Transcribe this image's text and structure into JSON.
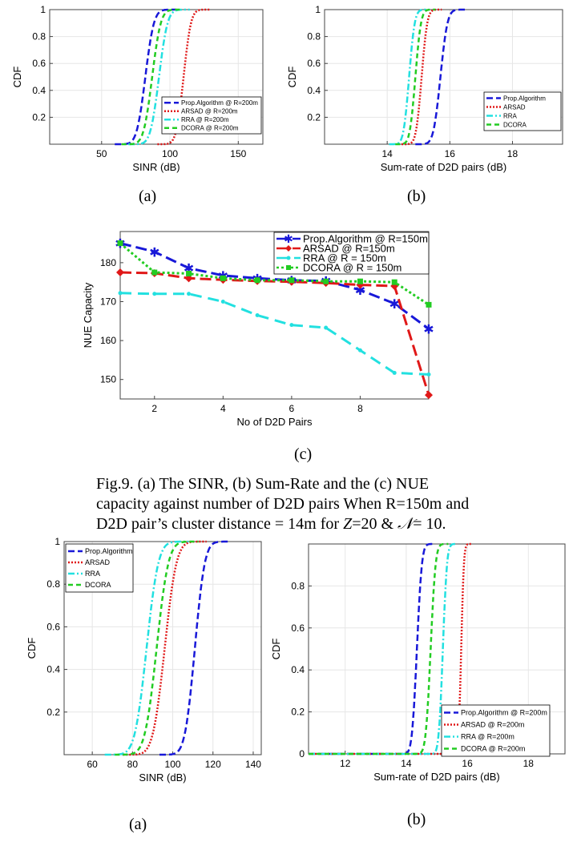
{
  "colors": {
    "blue": "#1818d8",
    "red": "#e01818",
    "cyan": "#22e0e0",
    "green": "#22cc22",
    "grid": "#e6e6e6",
    "axis": "#444444"
  },
  "captions": {
    "a1": "(a)",
    "b1": "(b)",
    "c": "(c)",
    "a2": "(a)",
    "b2": "(b)"
  },
  "figure_caption": {
    "line1": "Fig.9. (a) The SINR, (b) Sum-Rate and the (c) NUE",
    "line2": "capacity against number of D2D pairs  When R=150m and",
    "line3_prefix": "D2D pair’s cluster distance = 14m for ",
    "z_symbol": "Z",
    "line3_mid": "=20 & ",
    "n_symbol": "𝒩",
    "line3_suffix": "= 10."
  },
  "chart_data": [
    {
      "id": "a1",
      "type": "line",
      "xlabel": "SINR (dB)",
      "ylabel": "CDF",
      "title": "",
      "xlim": [
        12,
        168
      ],
      "ylim": [
        0,
        1
      ],
      "xticks": [
        50,
        100,
        150
      ],
      "yticks": [
        0.2,
        0.4,
        0.6,
        0.8,
        1
      ],
      "ytick_labels": [
        "0.2",
        "0.4",
        "0.6",
        "0.8",
        "1"
      ],
      "grid": true,
      "legend_position": "bottom-right",
      "series": [
        {
          "name": "Prop.Algorithm @ R=200m",
          "color": "blue",
          "dash": "8,4",
          "mu": 82,
          "sigma": 7
        },
        {
          "name": "ARSAD @ R=200m",
          "color": "red",
          "dash": "2,2",
          "mu": 110,
          "sigma": 6
        },
        {
          "name": "RRA @ R=200m",
          "color": "cyan",
          "dash": "8,3,2,3",
          "mu": 92,
          "sigma": 7
        },
        {
          "name": "DCORA @ R=200m",
          "color": "green",
          "dash": "6,4",
          "mu": 87,
          "sigma": 7
        }
      ]
    },
    {
      "id": "b1",
      "type": "line",
      "xlabel": "Sum-rate of D2D pairs (dB)",
      "ylabel": "CDF",
      "title": "",
      "xlim": [
        12,
        19.6
      ],
      "ylim": [
        0,
        1
      ],
      "xticks": [
        14,
        16,
        18
      ],
      "yticks": [
        0.2,
        0.4,
        0.6,
        0.8,
        1
      ],
      "ytick_labels": [
        "0.2",
        "0.4",
        "0.6",
        "0.8",
        "1"
      ],
      "grid": true,
      "legend_position": "right",
      "series": [
        {
          "name": "Prop.Algorithm",
          "color": "blue",
          "dash": "8,4",
          "mu": 15.7,
          "sigma": 0.25
        },
        {
          "name": "ARSAD",
          "color": "red",
          "dash": "2,2",
          "mu": 15.1,
          "sigma": 0.2
        },
        {
          "name": "RRA",
          "color": "cyan",
          "dash": "8,3,2,3",
          "mu": 14.7,
          "sigma": 0.2
        },
        {
          "name": "DCORA",
          "color": "green",
          "dash": "6,4",
          "mu": 14.9,
          "sigma": 0.2
        }
      ]
    },
    {
      "id": "c",
      "type": "line",
      "xlabel": "No of D2D Pairs",
      "ylabel": "NUE Capacity",
      "title": "",
      "xlim": [
        1,
        10
      ],
      "ylim": [
        145,
        188
      ],
      "xticks": [
        2,
        4,
        6,
        8
      ],
      "yticks": [
        150,
        160,
        170,
        180
      ],
      "ytick_labels": [
        "150",
        "160",
        "170",
        "180"
      ],
      "grid": false,
      "legend_position": "top-right",
      "series": [
        {
          "name": "Prop.Algorithm  @ R=150m",
          "color": "blue",
          "dash": "14,6",
          "marker": "star",
          "x": [
            1,
            2,
            3,
            4,
            5,
            6,
            7,
            8,
            9,
            10
          ],
          "y": [
            185,
            182.8,
            178.6,
            176.7,
            176,
            175.5,
            175.3,
            173,
            169.5,
            163
          ]
        },
        {
          "name": "ARSAD @ R=150m",
          "color": "red",
          "dash": "14,6",
          "marker": "diamond",
          "x": [
            1,
            2,
            3,
            4,
            5,
            6,
            7,
            8,
            9,
            10
          ],
          "y": [
            177.5,
            177.3,
            176,
            175.6,
            175.3,
            175.1,
            174.8,
            174.3,
            174,
            146
          ]
        },
        {
          "name": "RRA @ R = 150m",
          "color": "cyan",
          "dash": "14,8",
          "marker": "dot",
          "x": [
            1,
            2,
            3,
            4,
            5,
            6,
            7,
            8,
            9,
            10
          ],
          "y": [
            172.2,
            172,
            172,
            170,
            166.5,
            164,
            163.3,
            157.5,
            151.7,
            151.3
          ]
        },
        {
          "name": "DCORA @ R = 150m",
          "color": "green",
          "dash": "3,3",
          "marker": "square",
          "x": [
            1,
            2,
            3,
            4,
            5,
            6,
            7,
            8,
            9,
            10
          ],
          "y": [
            185,
            177.5,
            177.2,
            176,
            175.5,
            175.5,
            175.2,
            175.2,
            175,
            169.2
          ]
        }
      ]
    },
    {
      "id": "a2",
      "type": "line",
      "xlabel": "SINR (dB)",
      "ylabel": "CDF",
      "title": "",
      "xlim": [
        46,
        144
      ],
      "ylim": [
        0,
        1
      ],
      "xticks": [
        60,
        80,
        100,
        120,
        140
      ],
      "yticks": [
        0.2,
        0.4,
        0.6,
        0.8,
        1
      ],
      "ytick_labels": [
        "0.2",
        "0.4",
        "0.6",
        "0.8",
        "1"
      ],
      "grid": true,
      "legend_position": "top-left",
      "series": [
        {
          "name": "Prop.Algorithm",
          "color": "blue",
          "dash": "8,4",
          "mu": 111,
          "sigma": 5.5
        },
        {
          "name": "ARSAD",
          "color": "red",
          "dash": "2,2",
          "mu": 96,
          "sigma": 6.5
        },
        {
          "name": "RRA",
          "color": "cyan",
          "dash": "8,3,2,3",
          "mu": 87,
          "sigma": 6.5
        },
        {
          "name": "DCORA",
          "color": "green",
          "dash": "6,4",
          "mu": 92,
          "sigma": 6.5
        }
      ]
    },
    {
      "id": "b2",
      "type": "line",
      "xlabel": "Sum-rate of D2D pairs (dB)",
      "ylabel": "CDF",
      "title": "",
      "xlim": [
        10.8,
        19.2
      ],
      "ylim": [
        0,
        1
      ],
      "xticks": [
        12,
        14,
        16,
        18
      ],
      "yticks": [
        0,
        0.2,
        0.4,
        0.6,
        0.8
      ],
      "ytick_labels": [
        "0",
        "0.2",
        "0.4",
        "0.6",
        "0.8"
      ],
      "grid": true,
      "legend_position": "bottom-right",
      "series": [
        {
          "name": "Prop.Algorithm @ R=200m",
          "color": "blue",
          "dash": "8,4",
          "mu": 14.35,
          "sigma": 0.18
        },
        {
          "name": "ARSAD @ R=200m",
          "color": "red",
          "dash": "2,2",
          "mu": 15.8,
          "sigma": 0.1
        },
        {
          "name": "RRA @ R=200m",
          "color": "cyan",
          "dash": "8,3,2,3",
          "mu": 15.2,
          "sigma": 0.15
        },
        {
          "name": "DCORA @ R=200m",
          "color": "green",
          "dash": "6,4",
          "mu": 14.8,
          "sigma": 0.18
        }
      ]
    }
  ]
}
